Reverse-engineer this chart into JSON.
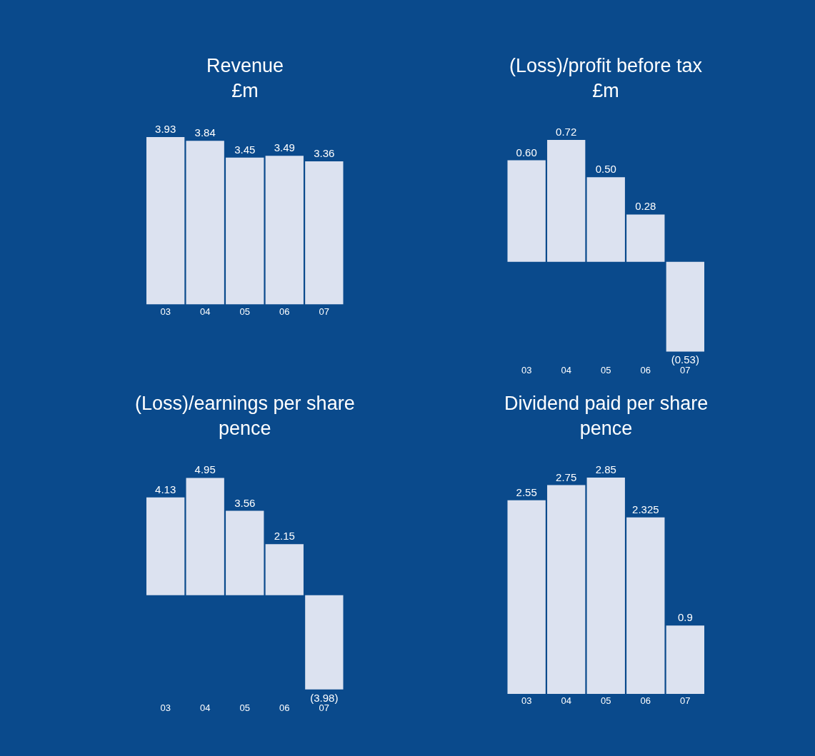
{
  "chart_data": [
    {
      "type": "bar",
      "title": "Revenue",
      "subtitle": "£m",
      "categories": [
        "03",
        "04",
        "05",
        "06",
        "07"
      ],
      "values": [
        3.93,
        3.84,
        3.45,
        3.49,
        3.36
      ],
      "value_labels": [
        "3.93",
        "3.84",
        "3.45",
        "3.49",
        "3.36"
      ],
      "color": "#dce2f0"
    },
    {
      "type": "bar",
      "title": "(Loss)/profit before tax",
      "subtitle": "£m",
      "categories": [
        "03",
        "04",
        "05",
        "06",
        "07"
      ],
      "values": [
        0.6,
        0.72,
        0.5,
        0.28,
        -0.53
      ],
      "value_labels": [
        "0.60",
        "0.72",
        "0.50",
        "0.28",
        "(0.53)"
      ],
      "color": "#dce2f0"
    },
    {
      "type": "bar",
      "title": "(Loss)/earnings per share",
      "subtitle": "pence",
      "categories": [
        "03",
        "04",
        "05",
        "06",
        "07"
      ],
      "values": [
        4.13,
        4.95,
        3.56,
        2.15,
        -3.98
      ],
      "value_labels": [
        "4.13",
        "4.95",
        "3.56",
        "2.15",
        "(3.98)"
      ],
      "color": "#dce2f0"
    },
    {
      "type": "bar",
      "title": "Dividend paid per share",
      "subtitle": "pence",
      "categories": [
        "03",
        "04",
        "05",
        "06",
        "07"
      ],
      "values": [
        2.55,
        2.75,
        2.85,
        2.325,
        0.9
      ],
      "value_labels": [
        "2.55",
        "2.75",
        "2.85",
        "2.325",
        "0.9"
      ],
      "color": "#dce2f0"
    }
  ]
}
